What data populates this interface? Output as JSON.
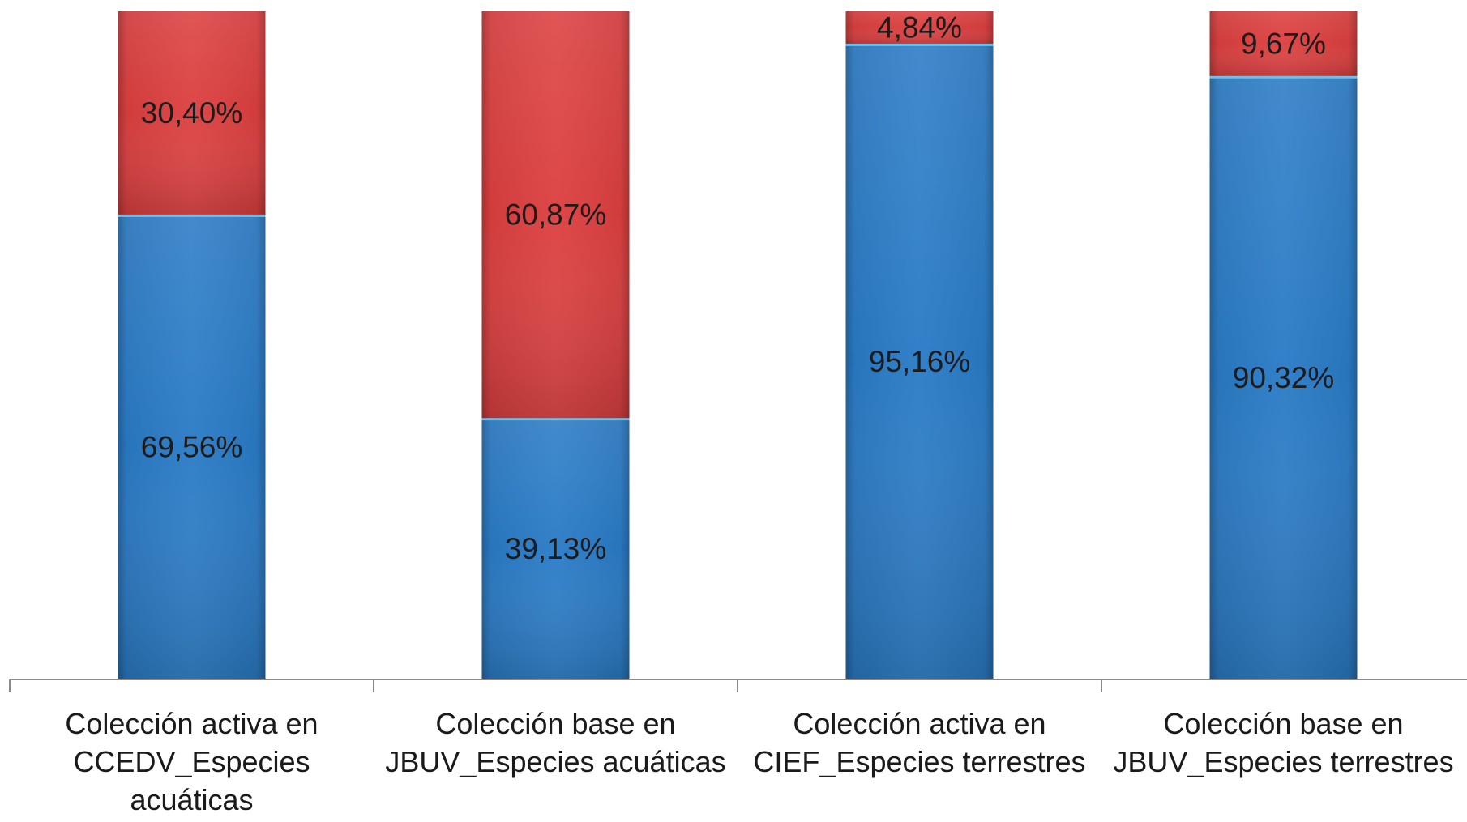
{
  "chart_data": {
    "type": "bar",
    "orientation": "vertical",
    "stacking": "percent",
    "title": "",
    "xlabel": "",
    "ylabel": "",
    "ylim": [
      0,
      100
    ],
    "grid": false,
    "legend": "none",
    "y_axis": "hidden",
    "categories": [
      "Colección activa en CCEDV_Especies acuáticas",
      "Colección base en JBUV_Especies acuáticas",
      "Colección activa en CIEF_Especies terrestres",
      "Colección base en JBUV_Especies terrestres"
    ],
    "series": [
      {
        "color": "#2a7bc6",
        "values": [
          69.56,
          39.13,
          95.16,
          90.32
        ],
        "labels": [
          "69,56%",
          "39,13%",
          "95,16%",
          "90,32%"
        ]
      },
      {
        "color": "#dc3f3f",
        "values": [
          30.4,
          60.87,
          4.84,
          9.67
        ],
        "labels": [
          "30,40%",
          "60,87%",
          "4,84%",
          "9,67%"
        ]
      }
    ]
  }
}
